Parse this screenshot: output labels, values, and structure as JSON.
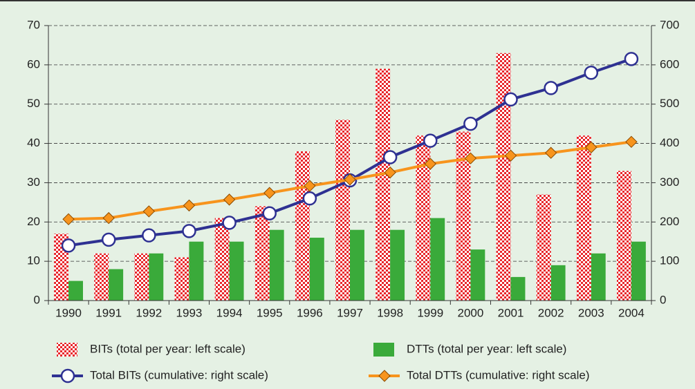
{
  "chart_data": {
    "type": "bar",
    "categories": [
      "1990",
      "1991",
      "1992",
      "1993",
      "1994",
      "1995",
      "1996",
      "1997",
      "1998",
      "1999",
      "2000",
      "2001",
      "2002",
      "2003",
      "2004"
    ],
    "series": [
      {
        "name": "BITs (total per year: left scale)",
        "color": "#e8262a",
        "values": [
          17,
          12,
          12,
          11,
          21,
          24,
          38,
          46,
          59,
          42,
          43,
          63,
          27,
          42,
          33
        ]
      },
      {
        "name": "DTTs (total per year: left scale)",
        "color": "#3aaa3a",
        "values": [
          5,
          8,
          12,
          15,
          15,
          18,
          16,
          18,
          18,
          21,
          13,
          6,
          9,
          12,
          15
        ]
      },
      {
        "name": "Total BITs (cumulative: right scale)",
        "type": "line",
        "marker": "circle",
        "axis": "y2",
        "color": "#2e3192",
        "values": [
          140,
          155,
          166,
          177,
          198,
          222,
          260,
          306,
          365,
          407,
          450,
          512,
          541,
          580,
          615
        ]
      },
      {
        "name": "Total DTTs (cumulative: right scale)",
        "type": "line",
        "marker": "diamond",
        "axis": "y2",
        "color": "#f7941d",
        "values": [
          207,
          210,
          227,
          242,
          257,
          274,
          292,
          308,
          326,
          348,
          362,
          369,
          376,
          390,
          404
        ]
      }
    ],
    "ylim": [
      0,
      70
    ],
    "yticks": [
      0,
      10,
      20,
      30,
      40,
      50,
      60,
      70
    ],
    "y2lim": [
      0,
      700
    ],
    "y2ticks": [
      0,
      100,
      200,
      300,
      400,
      500,
      600,
      700
    ],
    "grid": true
  }
}
